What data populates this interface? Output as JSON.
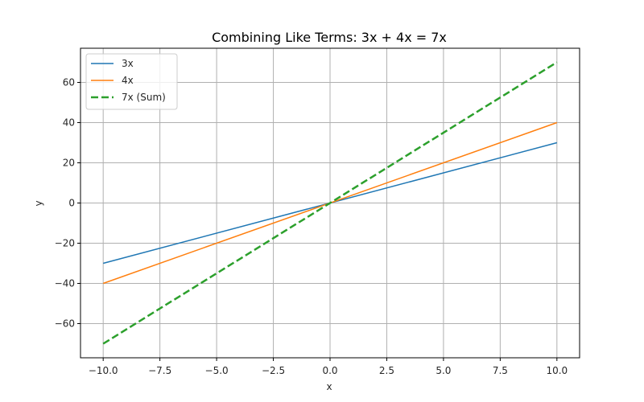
{
  "chart_data": {
    "type": "line",
    "title": "Combining Like Terms: 3x + 4x = 7x",
    "xlabel": "x",
    "ylabel": "y",
    "xlim": [
      -11.0,
      11.0
    ],
    "ylim": [
      -77.0,
      77.0
    ],
    "grid": true,
    "legend_position": "top-left",
    "x_ticks": [
      -10.0,
      -7.5,
      -5.0,
      -2.5,
      0.0,
      2.5,
      5.0,
      7.5,
      10.0
    ],
    "x_tick_labels": [
      "−10.0",
      "−7.5",
      "−5.0",
      "−2.5",
      "0.0",
      "2.5",
      "5.0",
      "7.5",
      "10.0"
    ],
    "y_ticks": [
      -60,
      -40,
      -20,
      0,
      20,
      40,
      60
    ],
    "y_tick_labels": [
      "−60",
      "−40",
      "−20",
      "0",
      "20",
      "40",
      "60"
    ],
    "x": [
      -10,
      10
    ],
    "series": [
      {
        "name": "3x",
        "values": [
          -30,
          30
        ],
        "color": "#1f77b4",
        "style": "solid"
      },
      {
        "name": "4x",
        "values": [
          -40,
          40
        ],
        "color": "#ff7f0e",
        "style": "solid"
      },
      {
        "name": "7x (Sum)",
        "values": [
          -70,
          70
        ],
        "color": "#2ca02c",
        "style": "dashed"
      }
    ]
  }
}
